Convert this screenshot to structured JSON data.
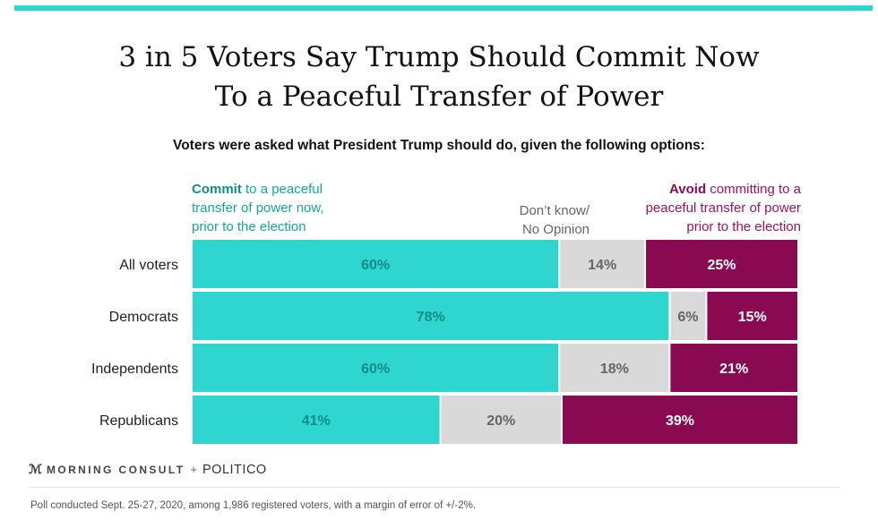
{
  "title_line1": "3 in 5 Voters Say Trump Should Commit Now",
  "title_line2": "To a Peaceful Transfer of Power",
  "subtitle": "Voters were asked what President Trump should do, given the following options:",
  "legend": {
    "commit_bold": "Commit",
    "commit_l1": " to a peaceful",
    "commit_l2": "transfer of power now,",
    "commit_l3": "prior to the election",
    "dk_l1": "Don’t know/",
    "dk_l2": "No Opinion",
    "avoid_bold": "Avoid",
    "avoid_l1": " committing to a",
    "avoid_l2": "peaceful transfer of power",
    "avoid_l3": "prior to the election"
  },
  "colors": {
    "commit": "#2fd6cf",
    "commit_text": "#0f8e86",
    "dontknow": "#d9d9d9",
    "dontknow_text": "#666666",
    "avoid": "#8a0a52",
    "avoid_text": "#ffffff"
  },
  "chart_data": {
    "type": "bar",
    "orientation": "horizontal",
    "stacked": true,
    "categories": [
      "All voters",
      "Democrats",
      "Independents",
      "Republicans"
    ],
    "series": [
      {
        "name": "Commit",
        "values": [
          60,
          78,
          60,
          41
        ]
      },
      {
        "name": "Don't know/No Opinion",
        "values": [
          14,
          6,
          18,
          20
        ]
      },
      {
        "name": "Avoid",
        "values": [
          25,
          15,
          21,
          39
        ]
      }
    ],
    "unit": "%"
  },
  "brand": {
    "morning_consult": "MORNING CONSULT",
    "plus": "+",
    "politico": "POLITICO"
  },
  "footnote": "Poll conducted Sept. 25-27, 2020, among 1,986 registered voters, with a margin of error of +/-2%."
}
